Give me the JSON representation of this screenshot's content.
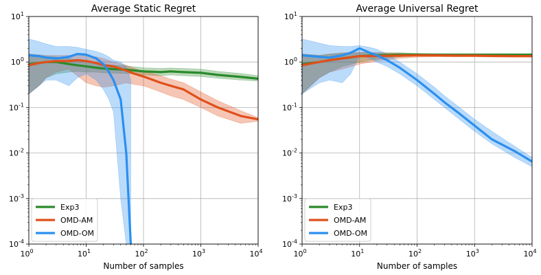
{
  "chart_data": [
    {
      "type": "line",
      "title": "Average Static Regret",
      "xlabel": "Number of samples",
      "ylabel": "",
      "xscale": "log",
      "yscale": "log",
      "xlim": [
        1,
        10000
      ],
      "ylim": [
        0.0001,
        10
      ],
      "grid": true,
      "legend_position": "bottom-left",
      "x_ticks": [
        {
          "base": "10",
          "exp": "0"
        },
        {
          "base": "10",
          "exp": "1"
        },
        {
          "base": "10",
          "exp": "2"
        },
        {
          "base": "10",
          "exp": "3"
        },
        {
          "base": "10",
          "exp": "4"
        }
      ],
      "y_ticks": [
        {
          "base": "10",
          "exp": "-4"
        },
        {
          "base": "10",
          "exp": "-3"
        },
        {
          "base": "10",
          "exp": "-2"
        },
        {
          "base": "10",
          "exp": "-1"
        },
        {
          "base": "10",
          "exp": "0"
        },
        {
          "base": "10",
          "exp": "1"
        }
      ],
      "series": [
        {
          "name": "Exp3",
          "color": "#2a8a2a",
          "x": [
            1,
            1.5,
            2,
            3,
            5,
            7,
            10,
            15,
            20,
            30,
            50,
            100,
            200,
            300,
            500,
            1000,
            2000,
            5000,
            10000
          ],
          "values": [
            0.9,
            0.95,
            1.0,
            1.0,
            0.9,
            0.85,
            0.8,
            0.75,
            0.72,
            0.7,
            0.68,
            0.62,
            0.6,
            0.62,
            0.6,
            0.58,
            0.52,
            0.47,
            0.43
          ],
          "lower": [
            0.2,
            0.3,
            0.45,
            0.55,
            0.6,
            0.62,
            0.6,
            0.6,
            0.58,
            0.57,
            0.56,
            0.52,
            0.5,
            0.52,
            0.5,
            0.48,
            0.44,
            0.4,
            0.38
          ],
          "upper": [
            1.5,
            1.4,
            1.35,
            1.3,
            1.2,
            1.1,
            1.0,
            0.95,
            0.9,
            0.85,
            0.82,
            0.75,
            0.72,
            0.74,
            0.72,
            0.7,
            0.62,
            0.56,
            0.5
          ]
        },
        {
          "name": "OMD-AM",
          "color": "#e04f1a",
          "x": [
            1,
            1.5,
            2,
            3,
            5,
            7,
            10,
            15,
            20,
            30,
            50,
            70,
            100,
            200,
            300,
            500,
            1000,
            2000,
            5000,
            10000
          ],
          "values": [
            0.85,
            0.95,
            1.0,
            1.05,
            1.05,
            1.1,
            1.05,
            0.95,
            0.85,
            0.8,
            0.65,
            0.55,
            0.48,
            0.35,
            0.3,
            0.25,
            0.15,
            0.1,
            0.065,
            0.055
          ],
          "lower": [
            0.2,
            0.3,
            0.45,
            0.6,
            0.7,
            0.5,
            0.35,
            0.3,
            0.28,
            0.3,
            0.35,
            0.32,
            0.3,
            0.22,
            0.18,
            0.15,
            0.1,
            0.065,
            0.045,
            0.05
          ],
          "upper": [
            1.5,
            1.45,
            1.4,
            1.4,
            1.4,
            1.45,
            1.4,
            1.3,
            1.2,
            1.0,
            0.85,
            0.72,
            0.62,
            0.5,
            0.42,
            0.35,
            0.22,
            0.14,
            0.085,
            0.06
          ]
        },
        {
          "name": "OMD-OM",
          "color": "#2a8ff0",
          "x": [
            1,
            1.5,
            2,
            3,
            5,
            7,
            10,
            15,
            20,
            25,
            30,
            40,
            50,
            60
          ],
          "values": [
            1.4,
            1.35,
            1.25,
            1.2,
            1.3,
            1.5,
            1.45,
            1.2,
            0.9,
            0.6,
            0.4,
            0.15,
            0.01,
            0.0001
          ],
          "lower": [
            0.2,
            0.3,
            0.4,
            0.4,
            0.3,
            0.45,
            0.55,
            0.4,
            0.25,
            0.15,
            0.08,
            0.001,
            0.0001,
            0.0001
          ],
          "upper": [
            3.2,
            2.8,
            2.5,
            2.2,
            2.2,
            2.1,
            1.9,
            1.7,
            1.5,
            1.3,
            1.1,
            1.0,
            0.8,
            0.4
          ]
        }
      ]
    },
    {
      "type": "line",
      "title": "Average Universal Regret",
      "xlabel": "Number of samples",
      "ylabel": "",
      "xscale": "log",
      "yscale": "log",
      "xlim": [
        1,
        10000
      ],
      "ylim": [
        0.0001,
        10
      ],
      "grid": true,
      "legend_position": "bottom-left",
      "x_ticks": [
        {
          "base": "10",
          "exp": "0"
        },
        {
          "base": "10",
          "exp": "1"
        },
        {
          "base": "10",
          "exp": "2"
        },
        {
          "base": "10",
          "exp": "3"
        },
        {
          "base": "10",
          "exp": "4"
        }
      ],
      "y_ticks": [
        {
          "base": "10",
          "exp": "-4"
        },
        {
          "base": "10",
          "exp": "-3"
        },
        {
          "base": "10",
          "exp": "-2"
        },
        {
          "base": "10",
          "exp": "-1"
        },
        {
          "base": "10",
          "exp": "0"
        },
        {
          "base": "10",
          "exp": "1"
        }
      ],
      "series": [
        {
          "name": "Exp3",
          "color": "#2a8a2a",
          "x": [
            1,
            2,
            3,
            5,
            10,
            20,
            50,
            100,
            200,
            500,
            1000,
            2000,
            5000,
            10000
          ],
          "values": [
            0.9,
            1.0,
            1.1,
            1.2,
            1.35,
            1.4,
            1.45,
            1.45,
            1.45,
            1.45,
            1.45,
            1.45,
            1.45,
            1.45
          ],
          "lower": [
            0.2,
            0.45,
            0.6,
            0.8,
            1.0,
            1.15,
            1.3,
            1.35,
            1.38,
            1.4,
            1.4,
            1.4,
            1.4,
            1.4
          ],
          "upper": [
            1.5,
            1.4,
            1.5,
            1.55,
            1.6,
            1.6,
            1.6,
            1.55,
            1.52,
            1.5,
            1.5,
            1.5,
            1.5,
            1.5
          ]
        },
        {
          "name": "OMD-AM",
          "color": "#e04f1a",
          "x": [
            1,
            2,
            3,
            5,
            10,
            20,
            50,
            100,
            200,
            500,
            1000,
            2000,
            5000,
            10000
          ],
          "values": [
            0.85,
            1.0,
            1.1,
            1.2,
            1.35,
            1.35,
            1.38,
            1.4,
            1.4,
            1.38,
            1.38,
            1.36,
            1.35,
            1.35
          ],
          "lower": [
            0.2,
            0.45,
            0.6,
            0.7,
            0.9,
            1.05,
            1.2,
            1.28,
            1.3,
            1.3,
            1.3,
            1.29,
            1.28,
            1.28
          ],
          "upper": [
            1.5,
            1.4,
            1.5,
            1.6,
            1.65,
            1.6,
            1.55,
            1.5,
            1.48,
            1.46,
            1.45,
            1.43,
            1.42,
            1.42
          ]
        },
        {
          "name": "OMD-OM",
          "color": "#2a8ff0",
          "x": [
            1,
            2,
            3,
            5,
            7,
            10,
            15,
            20,
            30,
            50,
            100,
            200,
            300,
            500,
            1000,
            2000,
            5000,
            10000
          ],
          "values": [
            1.4,
            1.3,
            1.25,
            1.4,
            1.6,
            2.0,
            1.6,
            1.4,
            1.1,
            0.75,
            0.4,
            0.2,
            0.13,
            0.08,
            0.04,
            0.02,
            0.011,
            0.0065
          ],
          "lower": [
            0.2,
            0.35,
            0.4,
            0.35,
            0.55,
            1.4,
            1.2,
            1.0,
            0.8,
            0.55,
            0.3,
            0.15,
            0.1,
            0.06,
            0.03,
            0.016,
            0.008,
            0.005
          ],
          "upper": [
            3.2,
            2.6,
            2.3,
            2.2,
            2.2,
            2.3,
            2.1,
            1.9,
            1.5,
            1.0,
            0.55,
            0.28,
            0.18,
            0.11,
            0.055,
            0.03,
            0.014,
            0.008
          ]
        }
      ]
    }
  ]
}
